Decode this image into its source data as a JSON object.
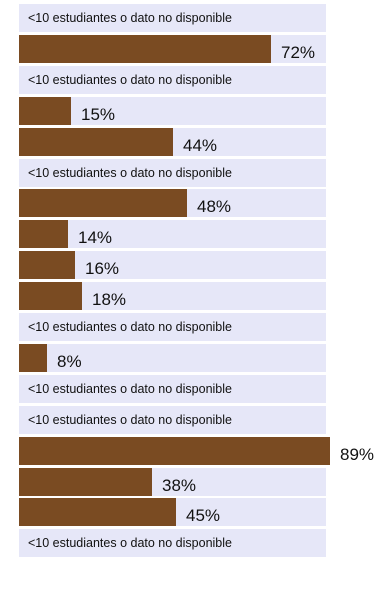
{
  "chart_data": {
    "type": "bar",
    "orientation": "horizontal",
    "title": "",
    "xlabel": "",
    "ylabel": "",
    "xlim": [
      0,
      100
    ],
    "grid": false,
    "bar_color": "#7a4b22",
    "track_color": "#e6e7f8",
    "no_data_label": "<10 estudiantes o dato no disponible",
    "series": [
      {
        "values": [
          null,
          72,
          null,
          15,
          44,
          null,
          48,
          14,
          16,
          18,
          null,
          8,
          null,
          null,
          89,
          38,
          45,
          null
        ],
        "labels": [
          "<10 estudiantes o dato no disponible",
          "72%",
          "<10 estudiantes o dato no disponible",
          "15%",
          "44%",
          "<10 estudiantes o dato no disponible",
          "48%",
          "14%",
          "16%",
          "18%",
          "<10 estudiantes o dato no disponible",
          "8%",
          "<10 estudiantes o dato no disponible",
          "<10 estudiantes o dato no disponible",
          "89%",
          "38%",
          "45%",
          "<10 estudiantes o dato no disponible"
        ]
      }
    ]
  }
}
